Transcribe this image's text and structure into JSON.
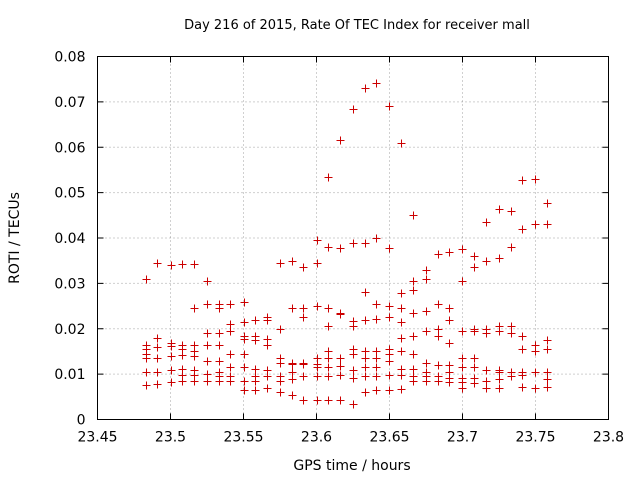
{
  "chart_data": {
    "type": "scatter",
    "title": "Day 216 of 2015, Rate Of TEC Index for receiver mall",
    "xlabel": "GPS time / hours",
    "ylabel": "ROTI / TECUs",
    "xlim": [
      23.45,
      23.8
    ],
    "ylim": [
      0,
      0.08
    ],
    "xticks": [
      23.45,
      23.5,
      23.55,
      23.6,
      23.65,
      23.7,
      23.75,
      23.8
    ],
    "xtick_labels": [
      "23.45",
      "23.5",
      "23.55",
      "23.6",
      "23.65",
      "23.7",
      "23.75",
      "23.8"
    ],
    "yticks": [
      0,
      0.01,
      0.02,
      0.03,
      0.04,
      0.05,
      0.06,
      0.07,
      0.08
    ],
    "ytick_labels": [
      "0",
      "0.01",
      "0.02",
      "0.03",
      "0.04",
      "0.05",
      "0.06",
      "0.07",
      "0.08"
    ],
    "grid": true,
    "marker": "+",
    "marker_color": "#cc0000",
    "series": [
      {
        "name": "ROTI",
        "points": [
          [
            23.483,
            0.031
          ],
          [
            23.483,
            0.0165
          ],
          [
            23.483,
            0.0155
          ],
          [
            23.483,
            0.0145
          ],
          [
            23.483,
            0.0135
          ],
          [
            23.483,
            0.0105
          ],
          [
            23.483,
            0.0075
          ],
          [
            23.491,
            0.0345
          ],
          [
            23.491,
            0.018
          ],
          [
            23.491,
            0.016
          ],
          [
            23.491,
            0.0135
          ],
          [
            23.491,
            0.0105
          ],
          [
            23.491,
            0.0078
          ],
          [
            23.5,
            0.034
          ],
          [
            23.5,
            0.0168
          ],
          [
            23.5,
            0.0162
          ],
          [
            23.5,
            0.014
          ],
          [
            23.5,
            0.011
          ],
          [
            23.5,
            0.0082
          ],
          [
            23.508,
            0.0342
          ],
          [
            23.508,
            0.0165
          ],
          [
            23.508,
            0.0155
          ],
          [
            23.508,
            0.0142
          ],
          [
            23.508,
            0.0112
          ],
          [
            23.508,
            0.0098
          ],
          [
            23.508,
            0.0085
          ],
          [
            23.516,
            0.0342
          ],
          [
            23.516,
            0.0245
          ],
          [
            23.516,
            0.0165
          ],
          [
            23.516,
            0.0152
          ],
          [
            23.516,
            0.014
          ],
          [
            23.516,
            0.0108
          ],
          [
            23.516,
            0.0098
          ],
          [
            23.516,
            0.0085
          ],
          [
            23.525,
            0.0305
          ],
          [
            23.525,
            0.0255
          ],
          [
            23.525,
            0.019
          ],
          [
            23.525,
            0.0165
          ],
          [
            23.525,
            0.013
          ],
          [
            23.525,
            0.01
          ],
          [
            23.525,
            0.0085
          ],
          [
            23.533,
            0.0255
          ],
          [
            23.533,
            0.0245
          ],
          [
            23.533,
            0.019
          ],
          [
            23.533,
            0.0165
          ],
          [
            23.533,
            0.013
          ],
          [
            23.533,
            0.0105
          ],
          [
            23.533,
            0.0095
          ],
          [
            23.533,
            0.0085
          ],
          [
            23.541,
            0.0255
          ],
          [
            23.541,
            0.021
          ],
          [
            23.541,
            0.0195
          ],
          [
            23.541,
            0.0145
          ],
          [
            23.541,
            0.0115
          ],
          [
            23.541,
            0.0095
          ],
          [
            23.541,
            0.0085
          ],
          [
            23.55,
            0.026
          ],
          [
            23.55,
            0.0215
          ],
          [
            23.55,
            0.0185
          ],
          [
            23.55,
            0.0178
          ],
          [
            23.55,
            0.0145
          ],
          [
            23.55,
            0.0115
          ],
          [
            23.55,
            0.0085
          ],
          [
            23.55,
            0.0065
          ],
          [
            23.558,
            0.022
          ],
          [
            23.558,
            0.0185
          ],
          [
            23.558,
            0.0175
          ],
          [
            23.558,
            0.0112
          ],
          [
            23.558,
            0.0095
          ],
          [
            23.558,
            0.0085
          ],
          [
            23.558,
            0.0065
          ],
          [
            23.566,
            0.0225
          ],
          [
            23.566,
            0.022
          ],
          [
            23.566,
            0.0178
          ],
          [
            23.566,
            0.0165
          ],
          [
            23.566,
            0.011
          ],
          [
            23.566,
            0.0095
          ],
          [
            23.566,
            0.007
          ],
          [
            23.575,
            0.0345
          ],
          [
            23.575,
            0.02
          ],
          [
            23.575,
            0.0135
          ],
          [
            23.575,
            0.0125
          ],
          [
            23.575,
            0.0095
          ],
          [
            23.575,
            0.0085
          ],
          [
            23.575,
            0.006
          ],
          [
            23.583,
            0.035
          ],
          [
            23.583,
            0.0245
          ],
          [
            23.583,
            0.0125
          ],
          [
            23.583,
            0.0122
          ],
          [
            23.583,
            0.0105
          ],
          [
            23.583,
            0.009
          ],
          [
            23.583,
            0.0055
          ],
          [
            23.591,
            0.0335
          ],
          [
            23.591,
            0.0225
          ],
          [
            23.591,
            0.0245
          ],
          [
            23.591,
            0.0125
          ],
          [
            23.591,
            0.0122
          ],
          [
            23.591,
            0.0095
          ],
          [
            23.591,
            0.0042
          ],
          [
            23.6,
            0.0395
          ],
          [
            23.6,
            0.0345
          ],
          [
            23.6,
            0.025
          ],
          [
            23.6,
            0.0135
          ],
          [
            23.6,
            0.0122
          ],
          [
            23.6,
            0.0115
          ],
          [
            23.6,
            0.0095
          ],
          [
            23.6,
            0.0042
          ],
          [
            23.608,
            0.0535
          ],
          [
            23.608,
            0.038
          ],
          [
            23.608,
            0.0245
          ],
          [
            23.608,
            0.0205
          ],
          [
            23.608,
            0.015
          ],
          [
            23.608,
            0.0135
          ],
          [
            23.608,
            0.0115
          ],
          [
            23.608,
            0.0095
          ],
          [
            23.608,
            0.0042
          ],
          [
            23.616,
            0.0615
          ],
          [
            23.616,
            0.0378
          ],
          [
            23.616,
            0.0235
          ],
          [
            23.616,
            0.0232
          ],
          [
            23.616,
            0.0135
          ],
          [
            23.616,
            0.0118
          ],
          [
            23.616,
            0.0098
          ],
          [
            23.616,
            0.0042
          ],
          [
            23.625,
            0.0685
          ],
          [
            23.625,
            0.039
          ],
          [
            23.625,
            0.0218
          ],
          [
            23.625,
            0.0205
          ],
          [
            23.625,
            0.0155
          ],
          [
            23.625,
            0.0145
          ],
          [
            23.625,
            0.011
          ],
          [
            23.625,
            0.0092
          ],
          [
            23.625,
            0.0035
          ],
          [
            23.633,
            0.073
          ],
          [
            23.633,
            0.039
          ],
          [
            23.633,
            0.028
          ],
          [
            23.633,
            0.022
          ],
          [
            23.633,
            0.0152
          ],
          [
            23.633,
            0.0135
          ],
          [
            23.633,
            0.0115
          ],
          [
            23.633,
            0.0095
          ],
          [
            23.633,
            0.006
          ],
          [
            23.641,
            0.0742
          ],
          [
            23.641,
            0.04
          ],
          [
            23.641,
            0.0255
          ],
          [
            23.641,
            0.0222
          ],
          [
            23.641,
            0.015
          ],
          [
            23.641,
            0.0135
          ],
          [
            23.641,
            0.0115
          ],
          [
            23.641,
            0.0095
          ],
          [
            23.641,
            0.0065
          ],
          [
            23.65,
            0.069
          ],
          [
            23.65,
            0.0378
          ],
          [
            23.65,
            0.025
          ],
          [
            23.65,
            0.0225
          ],
          [
            23.65,
            0.0155
          ],
          [
            23.65,
            0.0145
          ],
          [
            23.65,
            0.013
          ],
          [
            23.65,
            0.0098
          ],
          [
            23.65,
            0.0065
          ],
          [
            23.658,
            0.061
          ],
          [
            23.658,
            0.0278
          ],
          [
            23.658,
            0.0245
          ],
          [
            23.658,
            0.0215
          ],
          [
            23.658,
            0.018
          ],
          [
            23.658,
            0.015
          ],
          [
            23.658,
            0.0112
          ],
          [
            23.658,
            0.0098
          ],
          [
            23.658,
            0.0068
          ],
          [
            23.666,
            0.045
          ],
          [
            23.666,
            0.0305
          ],
          [
            23.666,
            0.0285
          ],
          [
            23.666,
            0.0235
          ],
          [
            23.666,
            0.0185
          ],
          [
            23.666,
            0.0145
          ],
          [
            23.666,
            0.0112
          ],
          [
            23.666,
            0.0095
          ],
          [
            23.666,
            0.0085
          ],
          [
            23.675,
            0.033
          ],
          [
            23.675,
            0.031
          ],
          [
            23.675,
            0.024
          ],
          [
            23.675,
            0.0195
          ],
          [
            23.675,
            0.0125
          ],
          [
            23.675,
            0.0105
          ],
          [
            23.675,
            0.0095
          ],
          [
            23.675,
            0.0085
          ],
          [
            23.683,
            0.0365
          ],
          [
            23.683,
            0.0255
          ],
          [
            23.683,
            0.02
          ],
          [
            23.683,
            0.0185
          ],
          [
            23.683,
            0.012
          ],
          [
            23.683,
            0.0095
          ],
          [
            23.683,
            0.0085
          ],
          [
            23.691,
            0.037
          ],
          [
            23.691,
            0.0245
          ],
          [
            23.691,
            0.022
          ],
          [
            23.691,
            0.0168
          ],
          [
            23.691,
            0.012
          ],
          [
            23.691,
            0.0105
          ],
          [
            23.691,
            0.0092
          ],
          [
            23.691,
            0.0082
          ],
          [
            23.7,
            0.0375
          ],
          [
            23.7,
            0.0305
          ],
          [
            23.7,
            0.0195
          ],
          [
            23.7,
            0.0135
          ],
          [
            23.7,
            0.0115
          ],
          [
            23.7,
            0.0092
          ],
          [
            23.7,
            0.0082
          ],
          [
            23.7,
            0.007
          ],
          [
            23.708,
            0.036
          ],
          [
            23.708,
            0.0335
          ],
          [
            23.708,
            0.02
          ],
          [
            23.708,
            0.0195
          ],
          [
            23.708,
            0.0135
          ],
          [
            23.708,
            0.0115
          ],
          [
            23.708,
            0.0092
          ],
          [
            23.708,
            0.008
          ],
          [
            23.716,
            0.0435
          ],
          [
            23.716,
            0.035
          ],
          [
            23.716,
            0.02
          ],
          [
            23.716,
            0.019
          ],
          [
            23.716,
            0.011
          ],
          [
            23.716,
            0.0085
          ],
          [
            23.716,
            0.007
          ],
          [
            23.725,
            0.0465
          ],
          [
            23.725,
            0.0355
          ],
          [
            23.725,
            0.0205
          ],
          [
            23.725,
            0.0195
          ],
          [
            23.725,
            0.011
          ],
          [
            23.725,
            0.0105
          ],
          [
            23.725,
            0.009
          ],
          [
            23.725,
            0.007
          ],
          [
            23.733,
            0.046
          ],
          [
            23.733,
            0.038
          ],
          [
            23.733,
            0.0205
          ],
          [
            23.733,
            0.019
          ],
          [
            23.733,
            0.0105
          ],
          [
            23.733,
            0.0095
          ],
          [
            23.741,
            0.0528
          ],
          [
            23.741,
            0.042
          ],
          [
            23.741,
            0.0185
          ],
          [
            23.741,
            0.0155
          ],
          [
            23.741,
            0.0105
          ],
          [
            23.741,
            0.0098
          ],
          [
            23.741,
            0.0072
          ],
          [
            23.75,
            0.053
          ],
          [
            23.75,
            0.043
          ],
          [
            23.75,
            0.0165
          ],
          [
            23.75,
            0.015
          ],
          [
            23.75,
            0.0105
          ],
          [
            23.75,
            0.007
          ],
          [
            23.758,
            0.0478
          ],
          [
            23.758,
            0.043
          ],
          [
            23.758,
            0.0175
          ],
          [
            23.758,
            0.0155
          ],
          [
            23.758,
            0.0105
          ],
          [
            23.758,
            0.009
          ],
          [
            23.758,
            0.0072
          ]
        ]
      }
    ]
  }
}
